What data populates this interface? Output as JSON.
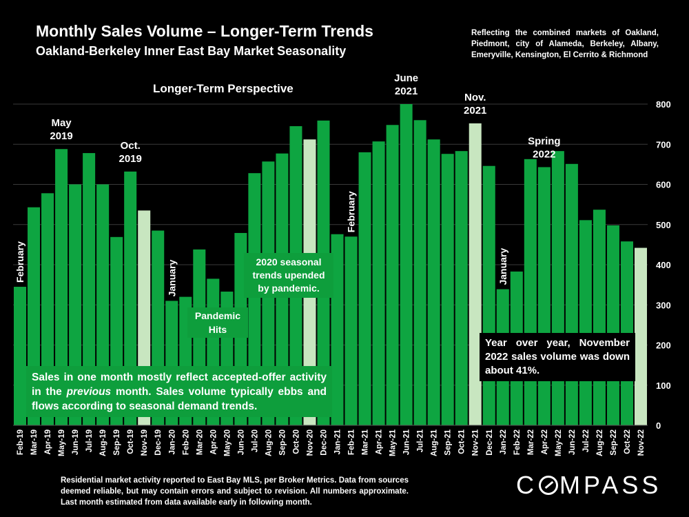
{
  "header": {
    "title": "Monthly Sales Volume – Longer-Term Trends",
    "subtitle": "Oakland-Berkeley Inner East Bay Market Seasonality",
    "context": "Reflecting the combined markets of Oakland, Piedmont, city of Alameda, Berkeley, Albany, Emeryville, Kensington, El Cerrito & Richmond"
  },
  "perspective_label": "Longer-Term Perspective",
  "notes": {
    "seasonal": "Sales in one month mostly reflect accepted-offer activity in the previous month. Sales volume typically ebbs and flows according to seasonal demand trends.",
    "seasonal_parts": [
      "Sales in one month mostly reflect accepted-offer activity in the ",
      "previous",
      " month. Sales volume typically ebbs and flows according to seasonal demand trends."
    ],
    "pandemic_2020": "2020 seasonal trends upended by pandemic.",
    "pandemic_hits": "Pandemic Hits",
    "yoy": "Year over year, November 2022 sales volume was down about 41%."
  },
  "footer": {
    "disclaimer": "Residential market activity reported to East Bay MLS, per Broker Metrics. Data from sources deemed reliable, but may contain errors and subject to revision. All numbers approximate. Last month estimated from data available early in following month.",
    "logo": "COMPASS"
  },
  "colors": {
    "background": "#000000",
    "bar": "#0ea541",
    "highlight_bar": "#c8e6c0",
    "gridline": "#3a3a3a",
    "note_box": "#0e9e3c"
  },
  "chart_data": {
    "type": "bar",
    "title": "Monthly Sales Volume – Longer-Term Trends",
    "ylim": [
      0,
      800
    ],
    "yticks": [
      0,
      100,
      200,
      300,
      400,
      500,
      600,
      700,
      800
    ],
    "y_axis_side": "right",
    "grid": true,
    "categories": [
      "Feb-19",
      "Mar-19",
      "Apr-19",
      "May-19",
      "Jun-19",
      "Jul-19",
      "Aug-19",
      "Sep-19",
      "Oct-19",
      "Nov-19",
      "Dec-19",
      "Jan-20",
      "Feb-20",
      "Mar-20",
      "Apr-20",
      "May-20",
      "Jun-20",
      "Jul-20",
      "Aug-20",
      "Sep-20",
      "Oct-20",
      "Nov-20",
      "Dec-20",
      "Jan-21",
      "Feb-21",
      "Mar-21",
      "Apr-21",
      "May-21",
      "Jun-21",
      "Jul-21",
      "Aug-21",
      "Sep-21",
      "Oct-21",
      "Nov-21",
      "Dec-21",
      "Jan-22",
      "Feb-22",
      "Mar-22",
      "Apr-22",
      "May-22",
      "Jun-22",
      "Jul-22",
      "Aug-22",
      "Sep-22",
      "Oct-22",
      "Nov-22"
    ],
    "values": [
      345,
      543,
      578,
      688,
      600,
      678,
      600,
      469,
      632,
      535,
      485,
      310,
      320,
      438,
      365,
      333,
      479,
      628,
      657,
      677,
      745,
      712,
      759,
      476,
      470,
      680,
      707,
      748,
      800,
      760,
      712,
      676,
      683,
      752,
      646,
      339,
      383,
      663,
      643,
      683,
      651,
      511,
      537,
      498,
      458,
      442
    ],
    "highlighted": [
      "Nov-19",
      "Nov-20",
      "Nov-21",
      "Nov-22"
    ],
    "annotations": [
      {
        "text": "February",
        "category": "Feb-19",
        "orientation": "vertical"
      },
      {
        "text": "May 2019",
        "lines": [
          "May",
          "2019"
        ],
        "category": "May-19"
      },
      {
        "text": "Oct. 2019",
        "lines": [
          "Oct.",
          "2019"
        ],
        "category": "Oct-19"
      },
      {
        "text": "January",
        "category": "Jan-20",
        "orientation": "vertical"
      },
      {
        "text": "February",
        "category": "Feb-21",
        "orientation": "vertical"
      },
      {
        "text": "June 2021",
        "lines": [
          "June",
          "2021"
        ],
        "category": "Jun-21"
      },
      {
        "text": "Nov. 2021",
        "lines": [
          "Nov.",
          "2021"
        ],
        "category": "Nov-21"
      },
      {
        "text": "January",
        "category": "Jan-22",
        "orientation": "vertical"
      },
      {
        "text": "Spring 2022",
        "lines": [
          "Spring",
          "2022"
        ],
        "category": "Apr-22"
      }
    ]
  }
}
